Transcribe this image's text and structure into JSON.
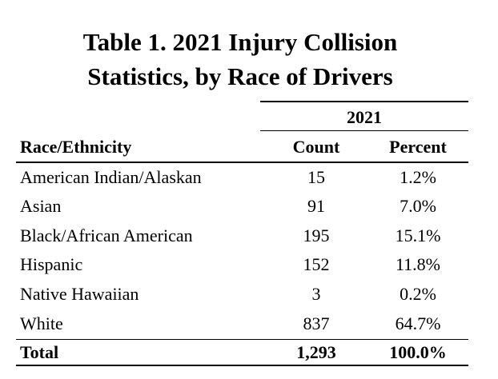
{
  "title": {
    "line1": "Table 1. 2021 Injury Collision",
    "line2": "Statistics, by Race of Drivers"
  },
  "table": {
    "year_header": "2021",
    "columns": [
      "Race/Ethnicity",
      "Count",
      "Percent"
    ],
    "rows": [
      {
        "race": "American Indian/Alaskan",
        "count": "15",
        "percent": "1.2%"
      },
      {
        "race": "Asian",
        "count": "91",
        "percent": "7.0%"
      },
      {
        "race": "Black/African American",
        "count": "195",
        "percent": "15.1%"
      },
      {
        "race": "Hispanic",
        "count": "152",
        "percent": "11.8%"
      },
      {
        "race": "Native Hawaiian",
        "count": "3",
        "percent": "0.2%"
      },
      {
        "race": "White",
        "count": "837",
        "percent": "64.7%"
      }
    ],
    "total": {
      "label": "Total",
      "count": "1,293",
      "percent": "100.0%"
    }
  }
}
